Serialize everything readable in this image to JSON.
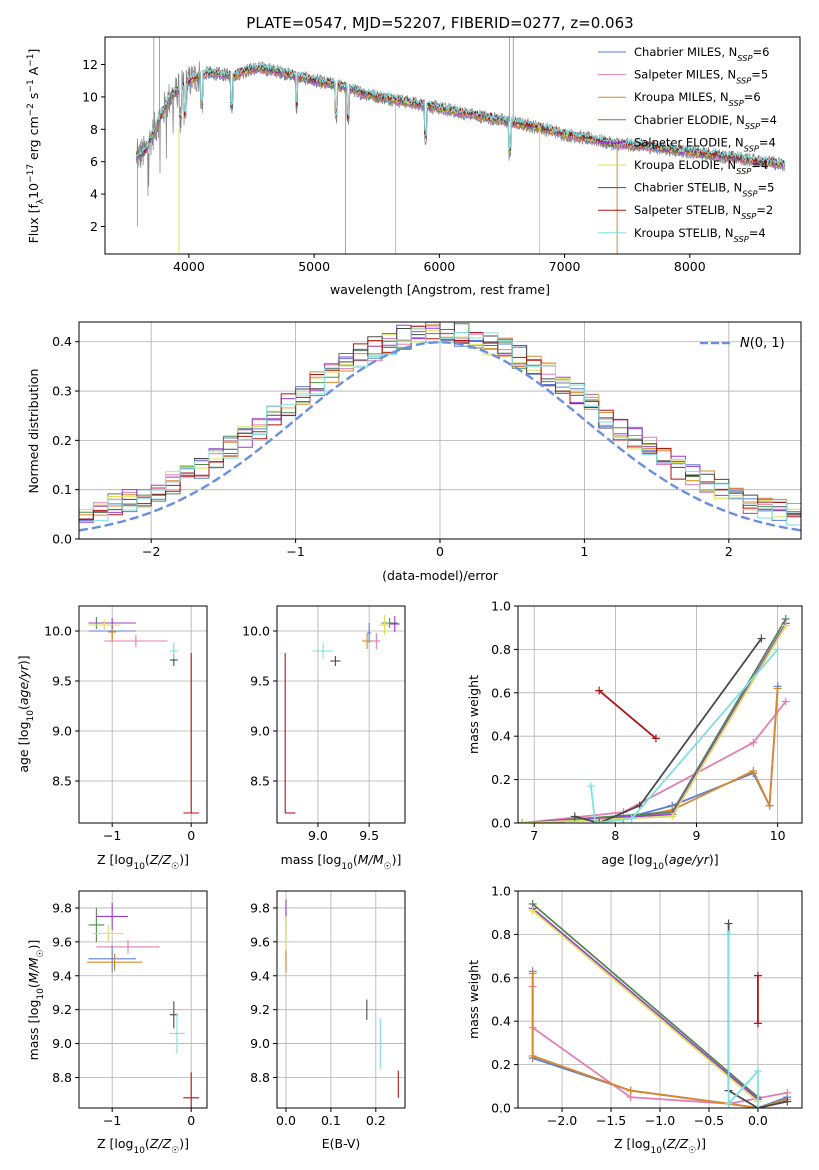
{
  "figure": {
    "title": "PLATE=0547, MJD=52207, FIBERID=0277, z=0.063"
  },
  "colors": {
    "Chabrier MILES": "#5a7fd8",
    "Salpeter MILES": "#e07fb4",
    "Kroupa MILES": "#d9892b",
    "Chabrier ELODIE": "#4f8a4f",
    "Salpeter ELODIE": "#9b3fcf",
    "Kroupa ELODIE": "#d8e05a",
    "Chabrier STELIB": "#4a4a4a",
    "Salpeter STELIB": "#b01414",
    "Kroupa STELIB": "#7ee0e0",
    "data": "#808080",
    "normal": "#6a8fe0"
  },
  "chart_data": [
    {
      "id": "spectrum",
      "type": "line",
      "title": "PLATE=0547, MJD=52207, FIBERID=0277, z=0.063",
      "xlabel": "wavelength [Angstrom, rest frame]",
      "ylabel": "Flux [f_λ 10^-17 erg cm^-2 s^-1 A^-1]",
      "xlim": [
        3330,
        8880
      ],
      "ylim": [
        0.3,
        13.7
      ],
      "xticks": [
        4000,
        5000,
        6000,
        7000,
        8000
      ],
      "yticks": [
        2,
        4,
        6,
        8,
        10,
        12
      ],
      "grid": false,
      "legend_position": "top-right",
      "continuum": {
        "x": [
          3580,
          3650,
          3750,
          3850,
          3950,
          4050,
          4150,
          4250,
          4350,
          4450,
          4550,
          4700,
          4850,
          5000,
          5200,
          5400,
          5600,
          5800,
          6000,
          6200,
          6400,
          6600,
          6800,
          7000,
          7200,
          7400,
          7600,
          7800,
          8000,
          8200,
          8400,
          8600,
          8760
        ],
        "y": [
          6.3,
          6.6,
          8.4,
          10.0,
          10.6,
          11.2,
          11.5,
          11.4,
          11.3,
          11.6,
          11.8,
          11.6,
          11.3,
          11.0,
          10.7,
          10.2,
          9.9,
          9.6,
          9.3,
          9.0,
          8.7,
          8.4,
          8.1,
          7.7,
          7.4,
          7.1,
          7.0,
          6.8,
          6.6,
          6.4,
          6.2,
          6.0,
          5.8
        ]
      },
      "series": [
        {
          "name": "Chabrier MILES, N_SSP=6"
        },
        {
          "name": "Salpeter MILES, N_SSP=5"
        },
        {
          "name": "Kroupa MILES, N_SSP=6"
        },
        {
          "name": "Chabrier ELODIE, N_SSP=4"
        },
        {
          "name": "Salpeter ELODIE, N_SSP=4"
        },
        {
          "name": "Kroupa ELODIE, N_SSP=4"
        },
        {
          "name": "Chabrier STELIB, N_SSP=5"
        },
        {
          "name": "Salpeter STELIB, N_SSP=2"
        },
        {
          "name": "Kroupa STELIB, N_SSP=4"
        }
      ]
    },
    {
      "id": "residuals",
      "type": "step",
      "xlabel": "(data-model)/error",
      "ylabel": "Normed distribution",
      "xlim": [
        -2.5,
        2.5
      ],
      "ylim": [
        0,
        0.44
      ],
      "xticks": [
        -2,
        -1,
        0,
        1,
        2
      ],
      "yticks": [
        0.0,
        0.1,
        0.2,
        0.3,
        0.4
      ],
      "grid": true,
      "legend_position": "top-right",
      "legend": "N(0,1)",
      "bins": 50,
      "series_names": [
        "Chabrier MILES",
        "Salpeter MILES",
        "Kroupa MILES",
        "Chabrier ELODIE",
        "Salpeter ELODIE",
        "Kroupa ELODIE",
        "Chabrier STELIB",
        "Salpeter STELIB",
        "Kroupa STELIB"
      ],
      "normal_curve": {
        "mean": 0,
        "sigma": 1
      }
    },
    {
      "id": "z-age",
      "type": "scatter",
      "xlabel": "Z [log10(Z/Z☉)]",
      "ylabel": "age  [log10(age/yr)]",
      "xlim": [
        -1.42,
        0.2
      ],
      "ylim": [
        8.08,
        10.25
      ],
      "xticks": [
        -1,
        0
      ],
      "yticks": [
        8.5,
        9.0,
        9.5,
        10.0
      ],
      "grid": true,
      "points": [
        {
          "series": "Chabrier MILES",
          "x": -1.0,
          "y": 10.0,
          "xerr": 0.3,
          "yerr": 0.08
        },
        {
          "series": "Salpeter MILES",
          "x": -0.7,
          "y": 9.9,
          "xerr": 0.4,
          "yerr": 0.06
        },
        {
          "series": "Kroupa MILES",
          "x": -1.0,
          "y": 9.99,
          "xerr": 0.05,
          "yerr": 0.1
        },
        {
          "series": "Chabrier ELODIE",
          "x": -1.2,
          "y": 10.08,
          "xerr": 0.1,
          "yerr": 0.06
        },
        {
          "series": "Salpeter ELODIE",
          "x": -1.0,
          "y": 10.08,
          "xerr": 0.3,
          "yerr": 0.05
        },
        {
          "series": "Kroupa ELODIE",
          "x": -1.1,
          "y": 10.06,
          "xerr": 0.2,
          "yerr": 0.05
        },
        {
          "series": "Chabrier STELIB",
          "x": -0.22,
          "y": 9.71,
          "xerr": 0.05,
          "yerr": 0.06
        },
        {
          "series": "Salpeter STELIB",
          "x": 0.0,
          "y": 8.18,
          "xerr": 0.1,
          "yerr": 0.0,
          "ylo": 8.18,
          "yhi": 9.78
        },
        {
          "series": "Kroupa STELIB",
          "x": -0.22,
          "y": 9.8,
          "xerr": 0.05,
          "yerr": 0.08
        }
      ]
    },
    {
      "id": "mass-age",
      "type": "scatter",
      "xlabel": "mass [log10(M/M☉)]",
      "ylabel": "",
      "xlim": [
        8.6,
        9.85
      ],
      "ylim": [
        8.08,
        10.25
      ],
      "xticks": [
        9.0,
        9.5
      ],
      "yticks": [
        8.5,
        9.0,
        9.5,
        10.0
      ],
      "grid": true,
      "points": [
        {
          "series": "Chabrier MILES",
          "x": 9.5,
          "y": 9.98,
          "xerr": 0.02,
          "yerr": 0.1
        },
        {
          "series": "Salpeter MILES",
          "x": 9.57,
          "y": 9.9,
          "xerr": 0.04,
          "yerr": 0.08
        },
        {
          "series": "Kroupa MILES",
          "x": 9.48,
          "y": 9.9,
          "xerr": 0.05,
          "yerr": 0.08
        },
        {
          "series": "Chabrier ELODIE",
          "x": 9.7,
          "y": 10.08,
          "xerr": 0.08,
          "yerr": 0.05
        },
        {
          "series": "Salpeter ELODIE",
          "x": 9.75,
          "y": 10.07,
          "xerr": 0.05,
          "yerr": 0.08
        },
        {
          "series": "Kroupa ELODIE",
          "x": 9.65,
          "y": 10.06,
          "xerr": 0.05,
          "yerr": 0.1
        },
        {
          "series": "Chabrier STELIB",
          "x": 9.17,
          "y": 9.7,
          "xerr": 0.05,
          "yerr": 0.05
        },
        {
          "series": "Salpeter STELIB",
          "x": 8.68,
          "y": 8.18,
          "xerr": 0.0,
          "yerr": 0.0,
          "xhi": 8.78,
          "ylo": 8.18,
          "yhi": 9.78
        },
        {
          "series": "Kroupa STELIB",
          "x": 9.05,
          "y": 9.8,
          "xerr": 0.1,
          "yerr": 0.08
        }
      ]
    },
    {
      "id": "age-massweight",
      "type": "line",
      "xlabel": "age  [log10(age/yr)]",
      "ylabel": "mass weight",
      "xlim": [
        6.8,
        10.3
      ],
      "ylim": [
        0,
        1
      ],
      "xticks": [
        7,
        8,
        9,
        10
      ],
      "yticks": [
        0.0,
        0.2,
        0.4,
        0.6,
        0.8,
        1.0
      ],
      "grid": true,
      "series": [
        {
          "name": "Chabrier MILES",
          "x": [
            6.85,
            8.1,
            8.7,
            9.7,
            9.9,
            10.0
          ],
          "y": [
            0.0,
            0.02,
            0.08,
            0.23,
            0.08,
            0.63
          ]
        },
        {
          "name": "Salpeter MILES",
          "x": [
            6.85,
            8.1,
            9.7,
            10.1
          ],
          "y": [
            0.0,
            0.05,
            0.37,
            0.56
          ]
        },
        {
          "name": "Kroupa MILES",
          "x": [
            6.85,
            8.1,
            8.7,
            9.7,
            9.9,
            10.0
          ],
          "y": [
            0.0,
            0.02,
            0.06,
            0.24,
            0.08,
            0.62
          ]
        },
        {
          "name": "Chabrier ELODIE",
          "x": [
            6.85,
            8.7,
            10.1
          ],
          "y": [
            0.0,
            0.05,
            0.94
          ]
        },
        {
          "name": "Salpeter ELODIE",
          "x": [
            6.85,
            8.7,
            10.1
          ],
          "y": [
            0.0,
            0.04,
            0.92
          ]
        },
        {
          "name": "Kroupa ELODIE",
          "x": [
            6.85,
            8.7,
            10.1
          ],
          "y": [
            0.0,
            0.03,
            0.91
          ]
        },
        {
          "name": "Chabrier STELIB",
          "x": [
            7.5,
            7.8,
            8.3,
            9.8
          ],
          "y": [
            0.03,
            0.0,
            0.08,
            0.85
          ]
        },
        {
          "name": "Salpeter STELIB",
          "x": [
            7.8,
            8.5
          ],
          "y": [
            0.61,
            0.39
          ]
        },
        {
          "name": "Kroupa STELIB",
          "x": [
            7.7,
            7.75,
            8.2,
            10.0
          ],
          "y": [
            0.17,
            0.0,
            0.02,
            0.8
          ]
        }
      ]
    },
    {
      "id": "z-mass",
      "type": "scatter",
      "xlabel": "Z [log10(Z/Z☉)]",
      "ylabel": "mass [log10(M/M☉)]",
      "xlim": [
        -1.42,
        0.2
      ],
      "ylim": [
        8.62,
        9.9
      ],
      "xticks": [
        -1,
        0
      ],
      "yticks": [
        8.8,
        9.0,
        9.2,
        9.4,
        9.6,
        9.8
      ],
      "grid": true,
      "points": [
        {
          "series": "Chabrier MILES",
          "x": -1.0,
          "y": 9.5,
          "xerr": 0.3,
          "yerr": 0.08
        },
        {
          "series": "Salpeter MILES",
          "x": -0.8,
          "y": 9.57,
          "xerr": 0.4,
          "yerr": 0.04
        },
        {
          "series": "Kroupa MILES",
          "x": -0.97,
          "y": 9.48,
          "xerr": 0.35,
          "yerr": 0.05
        },
        {
          "series": "Chabrier ELODIE",
          "x": -1.2,
          "y": 9.7,
          "xerr": 0.1,
          "yerr": 0.1
        },
        {
          "series": "Salpeter ELODIE",
          "x": -1.0,
          "y": 9.75,
          "xerr": 0.2,
          "yerr": 0.08
        },
        {
          "series": "Kroupa ELODIE",
          "x": -1.05,
          "y": 9.65,
          "xerr": 0.2,
          "yerr": 0.05
        },
        {
          "series": "Chabrier STELIB",
          "x": -0.22,
          "y": 9.17,
          "xerr": 0.05,
          "yerr": 0.08
        },
        {
          "series": "Salpeter STELIB",
          "x": 0.0,
          "y": 8.68,
          "xerr": 0.1,
          "yerr": 0.15
        },
        {
          "series": "Kroupa STELIB",
          "x": -0.18,
          "y": 9.06,
          "xerr": 0.1,
          "yerr": 0.12
        }
      ]
    },
    {
      "id": "ebv-mass",
      "type": "scatter",
      "xlabel": "E(B-V)",
      "ylabel": "",
      "xlim": [
        -0.02,
        0.265
      ],
      "ylim": [
        8.62,
        9.9
      ],
      "xticks": [
        0.0,
        0.1,
        0.2
      ],
      "yticks": [
        8.8,
        9.0,
        9.2,
        9.4,
        9.6,
        9.8
      ],
      "grid": true,
      "points": [
        {
          "series": "Chabrier MILES",
          "x": 0.0,
          "y": 9.5,
          "xerr": 0.0,
          "yerr": 0.06
        },
        {
          "series": "Salpeter MILES",
          "x": 0.0,
          "y": 9.57,
          "xerr": 0.0,
          "yerr": 0.08
        },
        {
          "series": "Kroupa MILES",
          "x": 0.0,
          "y": 9.48,
          "xerr": 0.0,
          "yerr": 0.06
        },
        {
          "series": "Chabrier ELODIE",
          "x": 0.0,
          "y": 9.7,
          "xerr": 0.0,
          "yerr": 0.1
        },
        {
          "series": "Salpeter ELODIE",
          "x": 0.0,
          "y": 9.75,
          "xerr": 0.0,
          "yerr": 0.1
        },
        {
          "series": "Kroupa ELODIE",
          "x": 0.0,
          "y": 9.65,
          "xerr": 0.0,
          "yerr": 0.1
        },
        {
          "series": "Chabrier STELIB",
          "x": 0.18,
          "y": 9.2,
          "xerr": 0.0,
          "yerr": 0.06
        },
        {
          "series": "Salpeter STELIB",
          "x": 0.25,
          "y": 8.76,
          "xerr": 0.0,
          "yerr": 0.08
        },
        {
          "series": "Kroupa STELIB",
          "x": 0.21,
          "y": 9.0,
          "xerr": 0.0,
          "yerr": 0.15
        }
      ]
    },
    {
      "id": "z-massweight",
      "type": "line",
      "xlabel": "Z [log10(Z/Z☉)]",
      "ylabel": "mass weight",
      "xlim": [
        -2.45,
        0.45
      ],
      "ylim": [
        0,
        1
      ],
      "xticks": [
        -2.0,
        -1.5,
        -1.0,
        -0.5,
        0.0
      ],
      "yticks": [
        0.0,
        0.2,
        0.4,
        0.6,
        0.8,
        1.0
      ],
      "grid": true,
      "series": [
        {
          "name": "Chabrier MILES",
          "x": [
            -2.3,
            -2.3,
            -1.3,
            -0.3,
            0.0,
            0.3
          ],
          "y": [
            0.63,
            0.23,
            0.08,
            0.02,
            0.0,
            0.05
          ]
        },
        {
          "name": "Salpeter MILES",
          "x": [
            -2.3,
            -2.3,
            -1.3,
            -0.3,
            0.3
          ],
          "y": [
            0.56,
            0.37,
            0.05,
            0.02,
            0.07
          ]
        },
        {
          "name": "Kroupa MILES",
          "x": [
            -2.3,
            -2.3,
            -1.3,
            -0.3,
            0.0,
            0.3
          ],
          "y": [
            0.62,
            0.24,
            0.08,
            0.02,
            0.0,
            0.04
          ]
        },
        {
          "name": "Chabrier ELODIE",
          "x": [
            -2.3,
            0.0
          ],
          "y": [
            0.94,
            0.05
          ]
        },
        {
          "name": "Salpeter ELODIE",
          "x": [
            -2.3,
            0.0
          ],
          "y": [
            0.92,
            0.04
          ]
        },
        {
          "name": "Kroupa ELODIE",
          "x": [
            -2.3,
            0.0
          ],
          "y": [
            0.91,
            0.03
          ]
        },
        {
          "name": "Chabrier STELIB",
          "x": [
            -0.3,
            -0.3,
            0.0,
            0.3
          ],
          "y": [
            0.85,
            0.08,
            0.0,
            0.03
          ]
        },
        {
          "name": "Salpeter STELIB",
          "x": [
            0.0,
            0.0
          ],
          "y": [
            0.61,
            0.39
          ]
        },
        {
          "name": "Kroupa STELIB",
          "x": [
            -0.3,
            -0.3,
            0.0,
            0.0
          ],
          "y": [
            0.8,
            0.02,
            0.17,
            0.0
          ]
        }
      ]
    }
  ]
}
